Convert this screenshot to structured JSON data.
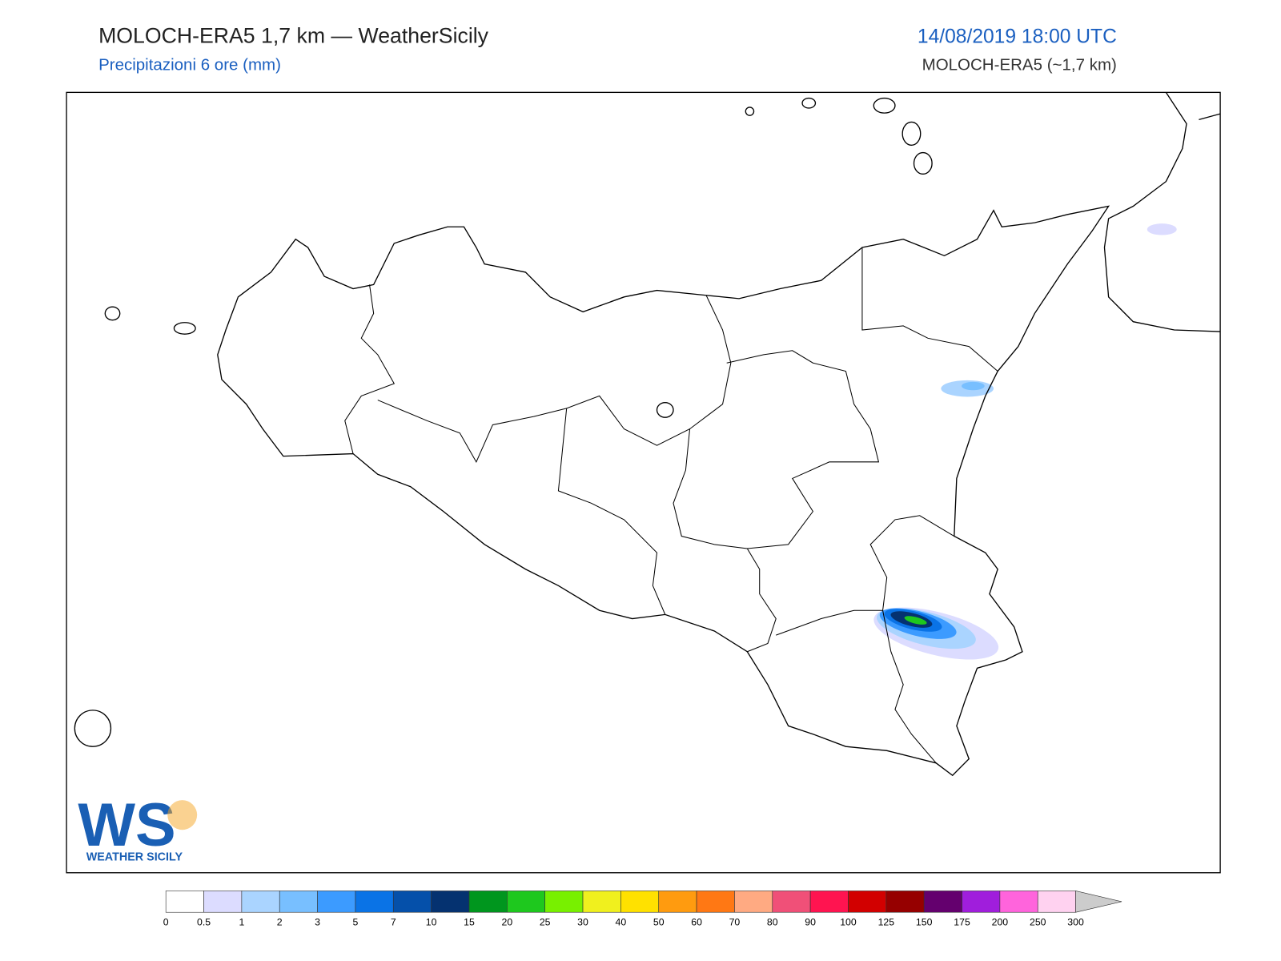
{
  "header": {
    "title": "MOLOCH-ERA5 1,7 km — WeatherSicily",
    "subtitle": "Precipitazioni 6 ore (mm)",
    "valid_time": "14/08/2019 18:00 UTC",
    "model": "MOLOCH-ERA5 (~1,7 km)"
  },
  "logo": {
    "letters": "WS",
    "text": "WEATHER SICILY"
  },
  "colorbar": {
    "levels": [
      0,
      0.5,
      1,
      2,
      3,
      5,
      7,
      10,
      15,
      20,
      25,
      30,
      40,
      50,
      60,
      70,
      80,
      90,
      100,
      125,
      150,
      175,
      200,
      250,
      300
    ],
    "colors": [
      "#ffffff",
      "#dcdcff",
      "#aad4ff",
      "#78bfff",
      "#3c9bff",
      "#0a73e6",
      "#0550aa",
      "#053270",
      "#00961e",
      "#1ec81e",
      "#78f000",
      "#f0f01e",
      "#ffe100",
      "#ff9b0f",
      "#ff7814",
      "#ffaa82",
      "#f05078",
      "#ff1450",
      "#d20000",
      "#960000",
      "#64006e",
      "#a01edc",
      "#ff64dc",
      "#ffd2f0"
    ],
    "extend_color": "#cccccc"
  }
}
